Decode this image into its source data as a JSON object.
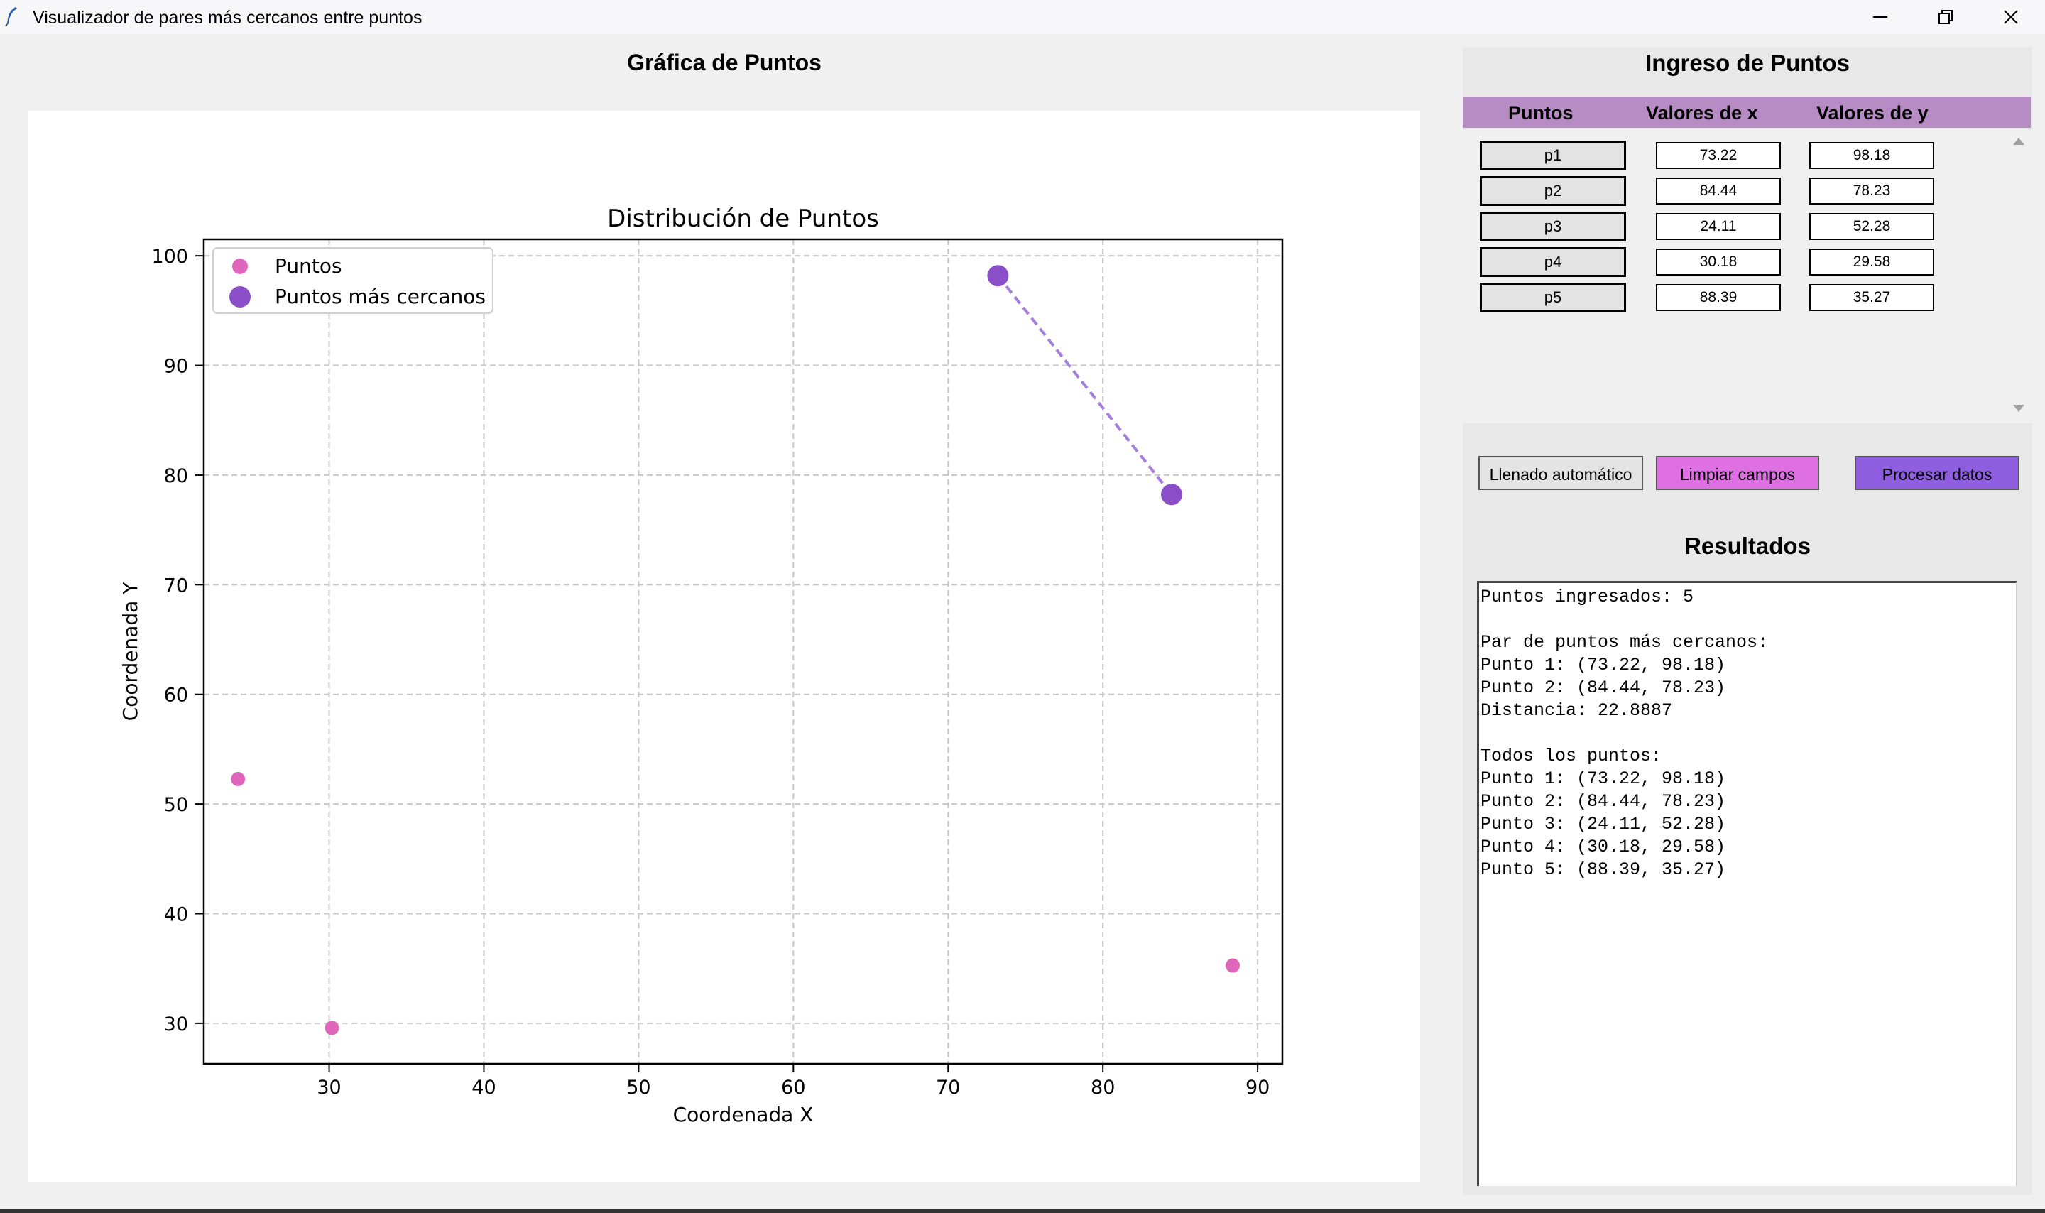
{
  "window": {
    "title": "Visualizador de pares más cercanos entre puntos"
  },
  "plot_panel": {
    "heading": "Gráfica de Puntos"
  },
  "chart_data": {
    "type": "scatter",
    "title": "Distribución de Puntos",
    "xlabel": "Coordenada X",
    "ylabel": "Coordenada Y",
    "xlim": [
      21.9,
      91.6
    ],
    "ylim": [
      26.3,
      101.5
    ],
    "xticks": [
      30,
      40,
      50,
      60,
      70,
      80,
      90
    ],
    "yticks": [
      30,
      40,
      50,
      60,
      70,
      80,
      90,
      100
    ],
    "grid": true,
    "legend": "upper-left",
    "series": [
      {
        "name": "Puntos",
        "color": "#e066bb",
        "points": [
          [
            73.22,
            98.18
          ],
          [
            84.44,
            78.23
          ],
          [
            24.11,
            52.28
          ],
          [
            30.18,
            29.58
          ],
          [
            88.39,
            35.27
          ]
        ]
      },
      {
        "name": "Puntos más cercanos",
        "color": "#8a4fc8",
        "points": [
          [
            73.22,
            98.18
          ],
          [
            84.44,
            78.23
          ]
        ],
        "connector": "dashed"
      }
    ]
  },
  "input_panel": {
    "title": "Ingreso de Puntos",
    "headers": {
      "points": "Puntos",
      "x": "Valores de x",
      "y": "Valores de y"
    },
    "rows": [
      {
        "label": "p1",
        "x": "73.22",
        "y": "98.18"
      },
      {
        "label": "p2",
        "x": "84.44",
        "y": "78.23"
      },
      {
        "label": "p3",
        "x": "24.11",
        "y": "52.28"
      },
      {
        "label": "p4",
        "x": "30.18",
        "y": "29.58"
      },
      {
        "label": "p5",
        "x": "88.39",
        "y": "35.27"
      }
    ]
  },
  "buttons": {
    "auto_fill": {
      "label": "Llenado automático",
      "color": "#e3e3e3"
    },
    "clear": {
      "label": "Limpiar campos",
      "color": "#dd6fe3"
    },
    "process": {
      "label": "Procesar datos",
      "color": "#8f5ee0"
    }
  },
  "results": {
    "title": "Resultados",
    "text": "Puntos ingresados: 5\n\nPar de puntos más cercanos:\nPunto 1: (73.22, 98.18)\nPunto 2: (84.44, 78.23)\nDistancia: 22.8887\n\nTodos los puntos:\nPunto 1: (73.22, 98.18)\nPunto 2: (84.44, 78.23)\nPunto 3: (24.11, 52.28)\nPunto 4: (30.18, 29.58)\nPunto 5: (88.39, 35.27)"
  }
}
